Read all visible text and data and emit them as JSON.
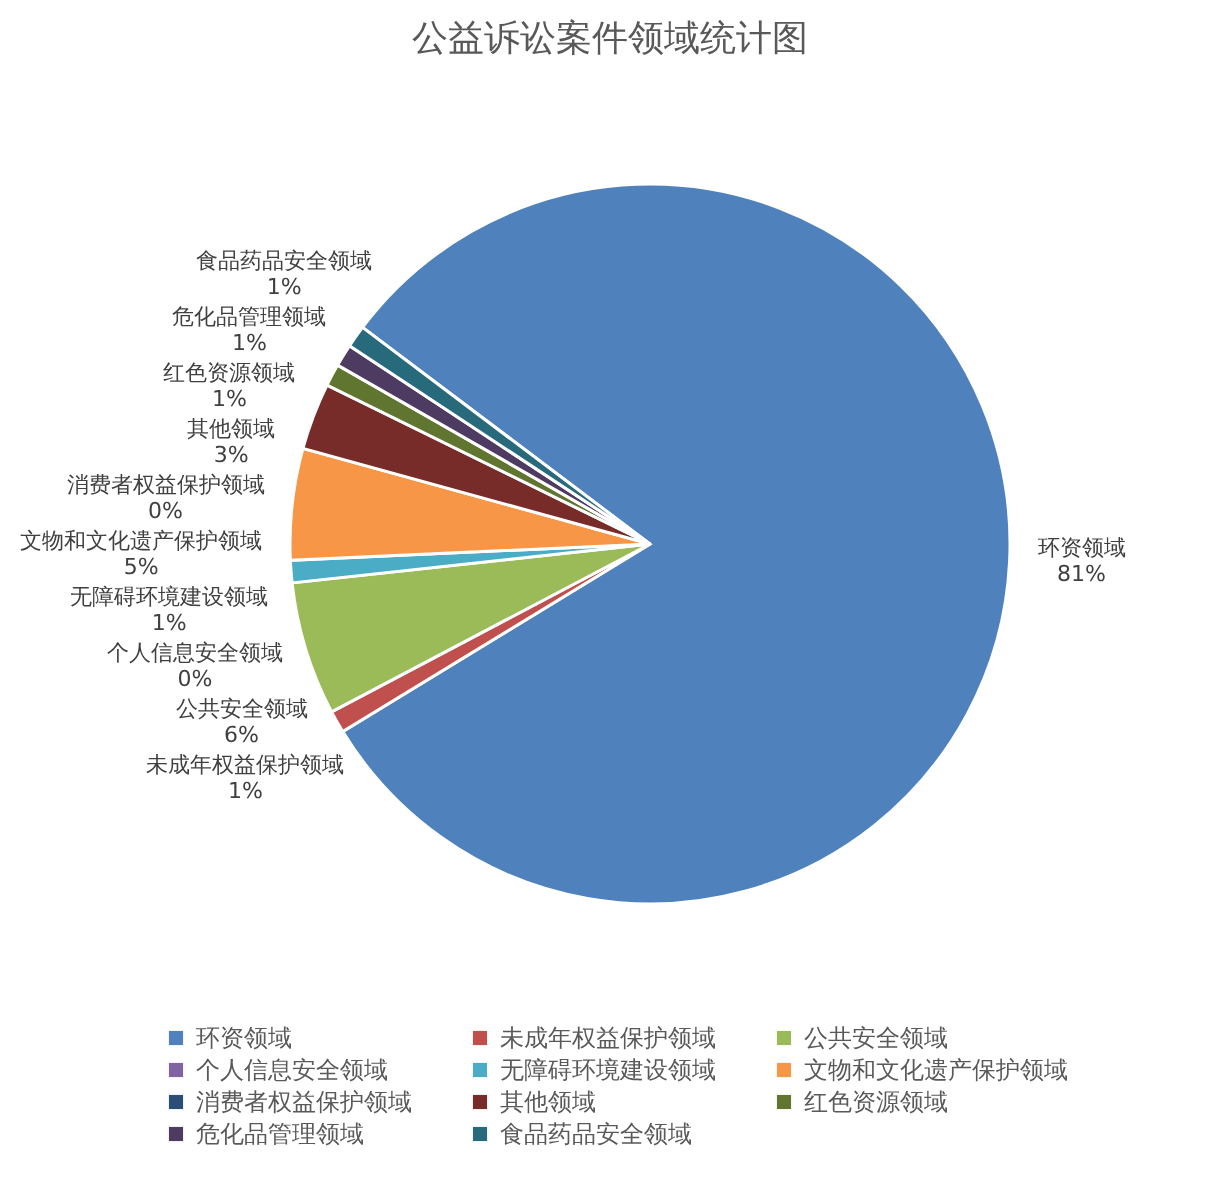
{
  "chart_data": {
    "type": "pie",
    "title": "公益诉讼案件领域统计图",
    "categories": [
      "环资领域",
      "未成年权益保护领域",
      "公共安全领域",
      "个人信息安全领域",
      "无障碍环境建设领域",
      "文物和文化遗产保护领域",
      "消费者权益保护领域",
      "其他领域",
      "红色资源领域",
      "危化品管理领域",
      "食品药品安全领域"
    ],
    "values": [
      81,
      1,
      6,
      0,
      1,
      5,
      0,
      3,
      1,
      1,
      1
    ],
    "colors": [
      "#4f81bd",
      "#c0504d",
      "#9bbb59",
      "#8064a2",
      "#4bacc6",
      "#f79646",
      "#2c4d75",
      "#772c2a",
      "#5f7530",
      "#4d3b62",
      "#276a7c"
    ],
    "value_labels": [
      "81%",
      "1%",
      "6%",
      "0%",
      "1%",
      "5%",
      "0%",
      "3%",
      "1%",
      "1%",
      "1%"
    ],
    "legend": "bottom"
  }
}
